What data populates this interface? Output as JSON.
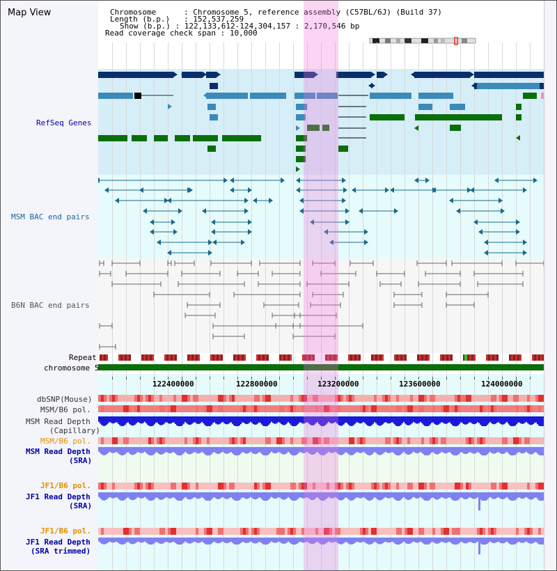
{
  "header": {
    "title": "Map View",
    "chromosome_label": "Chromosome",
    "chromosome_value": "Chromosome 5, reference assembly (C57BL/6J) (Build 37)",
    "length_label": "Length (b.p.)",
    "length_value": "152,537,259",
    "show_label": "Show (b.p.)",
    "show_value": "122,133,612-124,304,157 : 2,170,546 bp",
    "coverage_label": "Read coverage check span",
    "coverage_value": "10,000"
  },
  "tracks": {
    "refseq": "RefSeq Genes",
    "msm_bac": "MSM BAC end pairs",
    "b6n_bac": "B6N BAC end pairs",
    "repeat": "Repeat",
    "chromosome": "chromosome 5",
    "dbsnp": "dbSNP(Mouse)",
    "msm_b6_pol_1": "MSM/B6 pol.",
    "msm_read_depth_cap_1": "MSM Read Depth",
    "msm_read_depth_cap_2": "(Capillary)",
    "msm_b6_pol_2": "MSM/B6 pol.",
    "msm_read_depth_sra_1": "MSM Read Depth",
    "msm_read_depth_sra_2": "(SRA)",
    "jf1_b6_pol_1": "JF1/B6 pol.",
    "jf1_read_depth_sra_1": "JF1 Read Depth",
    "jf1_read_depth_sra_2": "(SRA)",
    "jf1_b6_pol_2": "JF1/B6 pol.",
    "jf1_read_depth_trim_1": "JF1 Read Depth",
    "jf1_read_depth_trim_2": "(SRA trimmed)"
  },
  "ruler": {
    "ticks": [
      "122400000",
      "122800000",
      "123200000",
      "123600000",
      "124000000"
    ]
  },
  "colors": {
    "refseq_bg": "#d6eef8",
    "msm_bac_bg": "#e6fbfb",
    "b6n_bac_bg": "#f6f6f6",
    "highlight": "#f6c8ec",
    "gene_dark": "#0a2d6b",
    "gene_mid": "#3b8ab8",
    "gene_green": "#0a6e0a",
    "chrom_green": "#0a6e0a",
    "depth_blue": "#1a1ad8",
    "depth_light": "#8080f0",
    "snp_pink": "#f4a0a0",
    "label_blue": "#0000a0",
    "label_orange": "#e09000",
    "label_teal": "#1a6a9a"
  }
}
